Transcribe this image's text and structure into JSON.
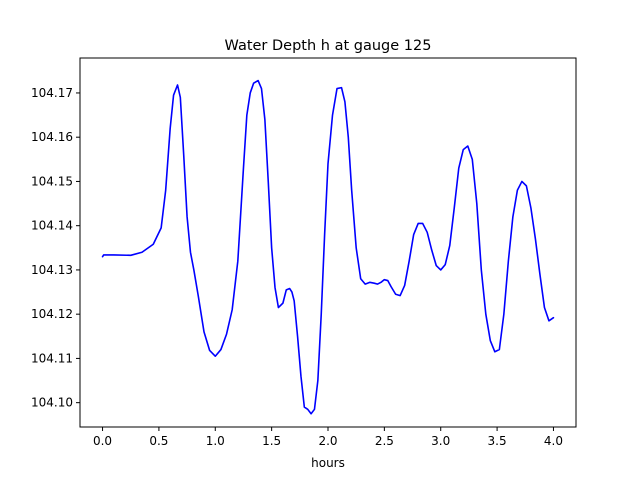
{
  "chart_data": {
    "type": "line",
    "title": "Water Depth h at gauge 125",
    "xlabel": "hours",
    "ylabel": "",
    "xlim": [
      -0.2,
      4.2
    ],
    "ylim": [
      104.0945,
      104.1779
    ],
    "xticks": [
      0.0,
      0.5,
      1.0,
      1.5,
      2.0,
      2.5,
      3.0,
      3.5,
      4.0
    ],
    "xtick_labels": [
      "0.0",
      "0.5",
      "1.0",
      "1.5",
      "2.0",
      "2.5",
      "3.0",
      "3.5",
      "4.0"
    ],
    "yticks": [
      104.1,
      104.11,
      104.12,
      104.13,
      104.14,
      104.15,
      104.16,
      104.17
    ],
    "ytick_labels": [
      "104.10",
      "104.11",
      "104.12",
      "104.13",
      "104.14",
      "104.15",
      "104.16",
      "104.17"
    ],
    "grid": false,
    "legend": false,
    "series": [
      {
        "color": "#0000ff",
        "x": [
          0.0,
          0.01,
          0.1,
          0.25,
          0.35,
          0.45,
          0.52,
          0.56,
          0.6,
          0.63,
          0.665,
          0.69,
          0.72,
          0.75,
          0.78,
          0.81,
          0.85,
          0.9,
          0.95,
          1.0,
          1.05,
          1.1,
          1.15,
          1.2,
          1.25,
          1.28,
          1.31,
          1.34,
          1.38,
          1.41,
          1.44,
          1.47,
          1.5,
          1.53,
          1.56,
          1.6,
          1.63,
          1.66,
          1.68,
          1.7,
          1.73,
          1.76,
          1.79,
          1.82,
          1.85,
          1.88,
          1.91,
          1.94,
          1.97,
          2.0,
          2.04,
          2.08,
          2.12,
          2.15,
          2.18,
          2.21,
          2.25,
          2.29,
          2.33,
          2.37,
          2.41,
          2.44,
          2.47,
          2.5,
          2.53,
          2.56,
          2.6,
          2.64,
          2.68,
          2.72,
          2.76,
          2.8,
          2.84,
          2.88,
          2.92,
          2.96,
          3.0,
          3.04,
          3.08,
          3.12,
          3.16,
          3.2,
          3.24,
          3.28,
          3.32,
          3.36,
          3.4,
          3.44,
          3.48,
          3.52,
          3.56,
          3.6,
          3.64,
          3.68,
          3.72,
          3.76,
          3.8,
          3.84,
          3.88,
          3.92,
          3.96,
          4.0
        ],
        "y": [
          104.133,
          104.1334,
          104.1334,
          104.1333,
          104.134,
          104.1358,
          104.1395,
          104.148,
          104.162,
          104.1695,
          104.1718,
          104.169,
          104.156,
          104.142,
          104.134,
          104.13,
          104.124,
          104.116,
          104.1118,
          104.1105,
          104.112,
          104.1155,
          104.121,
          104.132,
          104.153,
          104.165,
          104.17,
          104.1722,
          104.1728,
          104.171,
          104.164,
          104.15,
          104.135,
          104.126,
          104.1215,
          104.1225,
          104.1255,
          104.1258,
          104.125,
          104.123,
          104.115,
          104.106,
          104.099,
          104.0985,
          104.0975,
          104.0985,
          104.105,
          104.12,
          104.138,
          104.154,
          104.165,
          104.171,
          104.1712,
          104.168,
          104.16,
          104.148,
          104.135,
          104.128,
          104.1268,
          104.1272,
          104.127,
          104.1268,
          104.1272,
          104.1278,
          104.1276,
          104.1262,
          104.1245,
          104.1242,
          104.1265,
          104.132,
          104.138,
          104.1405,
          104.1405,
          104.1385,
          104.1345,
          104.131,
          104.13,
          104.1312,
          104.1355,
          104.144,
          104.153,
          104.1572,
          104.158,
          104.155,
          104.145,
          104.13,
          104.12,
          104.114,
          104.1115,
          104.112,
          104.12,
          104.132,
          104.142,
          104.148,
          104.15,
          104.149,
          104.144,
          104.137,
          104.129,
          104.1215,
          104.1185,
          104.1192
        ]
      }
    ]
  }
}
